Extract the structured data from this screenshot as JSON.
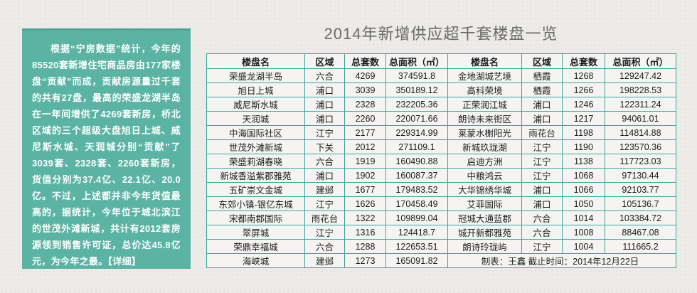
{
  "header": {
    "title": "2014年新增供应超千套楼盘一览"
  },
  "sidebar": {
    "bg_color": "#5bb3a4",
    "text": "根据“宁房数据”统计，今年的85520套新增住宅商品房由177家楼盘“贡献”而成，贡献房源量过千套的共有27盘，最高的荣盛龙湖半岛在一年间增供了4269套新房，桥北区域的三个超级大盘旭日上城、威尼斯水城、天润城分别“贡献”了3039套、2328套、2260套新房，货值分别为37.4亿、22.1亿、20.0亿。不过，上述都并非今年货值最高的，据统计，今年位于城北滨江的世茂外滩新城，共计有2012套房源领到销售许可证，总价达45.8亿元，为今年之最。",
    "detail_link": "【详细】"
  },
  "table": {
    "border_color": "#3aa79a",
    "headers": [
      "楼盘名",
      "区域",
      "总套数",
      "总面积（㎡）"
    ],
    "left_rows": [
      {
        "name": "荣盛龙湖半岛",
        "district": "六合",
        "units": "4269",
        "area": "374591.8"
      },
      {
        "name": "旭日上城",
        "district": "浦口",
        "units": "3039",
        "area": "350189.12"
      },
      {
        "name": "威尼斯水城",
        "district": "浦口",
        "units": "2328",
        "area": "232205.36"
      },
      {
        "name": "天润城",
        "district": "浦口",
        "units": "2260",
        "area": "220071.66"
      },
      {
        "name": "中海国际社区",
        "district": "江宁",
        "units": "2177",
        "area": "229314.99"
      },
      {
        "name": "世茂外滩新城",
        "district": "下关",
        "units": "2012",
        "area": "271109.1"
      },
      {
        "name": "荣盛莉湖春晓",
        "district": "六合",
        "units": "1919",
        "area": "160490.88"
      },
      {
        "name": "新城香溢紫郡雅苑",
        "district": "浦口",
        "units": "1902",
        "area": "160087.37"
      },
      {
        "name": "五矿崇文金城",
        "district": "建邺",
        "units": "1677",
        "area": "179483.52"
      },
      {
        "name": "东郊小镇-银亿东城",
        "district": "江宁",
        "units": "1626",
        "area": "170458.49"
      },
      {
        "name": "宋都南郡国际",
        "district": "雨花台",
        "units": "1322",
        "area": "109899.04"
      },
      {
        "name": "翠屏城",
        "district": "江宁",
        "units": "1316",
        "area": "124418.7"
      },
      {
        "name": "荣鼎幸福城",
        "district": "六合",
        "units": "1288",
        "area": "122653.51"
      },
      {
        "name": "海峡城",
        "district": "建邺",
        "units": "1273",
        "area": "165091.82"
      }
    ],
    "right_rows": [
      {
        "name": "金地湖城艺境",
        "district": "栖霞",
        "units": "1268",
        "area": "129247.42"
      },
      {
        "name": "高科荣境",
        "district": "栖霞",
        "units": "1266",
        "area": "198228.53"
      },
      {
        "name": "正荣润江城",
        "district": "浦口",
        "units": "1246",
        "area": "122311.24"
      },
      {
        "name": "朗诗未来街区",
        "district": "浦口",
        "units": "1217",
        "area": "94061.01"
      },
      {
        "name": "莱蒙水榭阳光",
        "district": "雨花台",
        "units": "1198",
        "area": "114814.88"
      },
      {
        "name": "新城玖珑湖",
        "district": "江宁",
        "units": "1190",
        "area": "123570.36"
      },
      {
        "name": "启迪方洲",
        "district": "江宁",
        "units": "1138",
        "area": "117723.03"
      },
      {
        "name": "中粮鸿云",
        "district": "江宁",
        "units": "1068",
        "area": "97130.44"
      },
      {
        "name": "大华锦绣华城",
        "district": "浦口",
        "units": "1066",
        "area": "92103.77"
      },
      {
        "name": "艾菲国际",
        "district": "浦口",
        "units": "1050",
        "area": "105136.7"
      },
      {
        "name": "冠城大通蓝郡",
        "district": "六合",
        "units": "1014",
        "area": "103384.72"
      },
      {
        "name": "城开新都雅苑",
        "district": "六合",
        "units": "1008",
        "area": "88467.08"
      },
      {
        "name": "朗诗玲珑屿",
        "district": "江宁",
        "units": "1004",
        "area": "111665.2"
      }
    ],
    "footer": "制表：王鑫 截止时间：2014年12月22日"
  }
}
